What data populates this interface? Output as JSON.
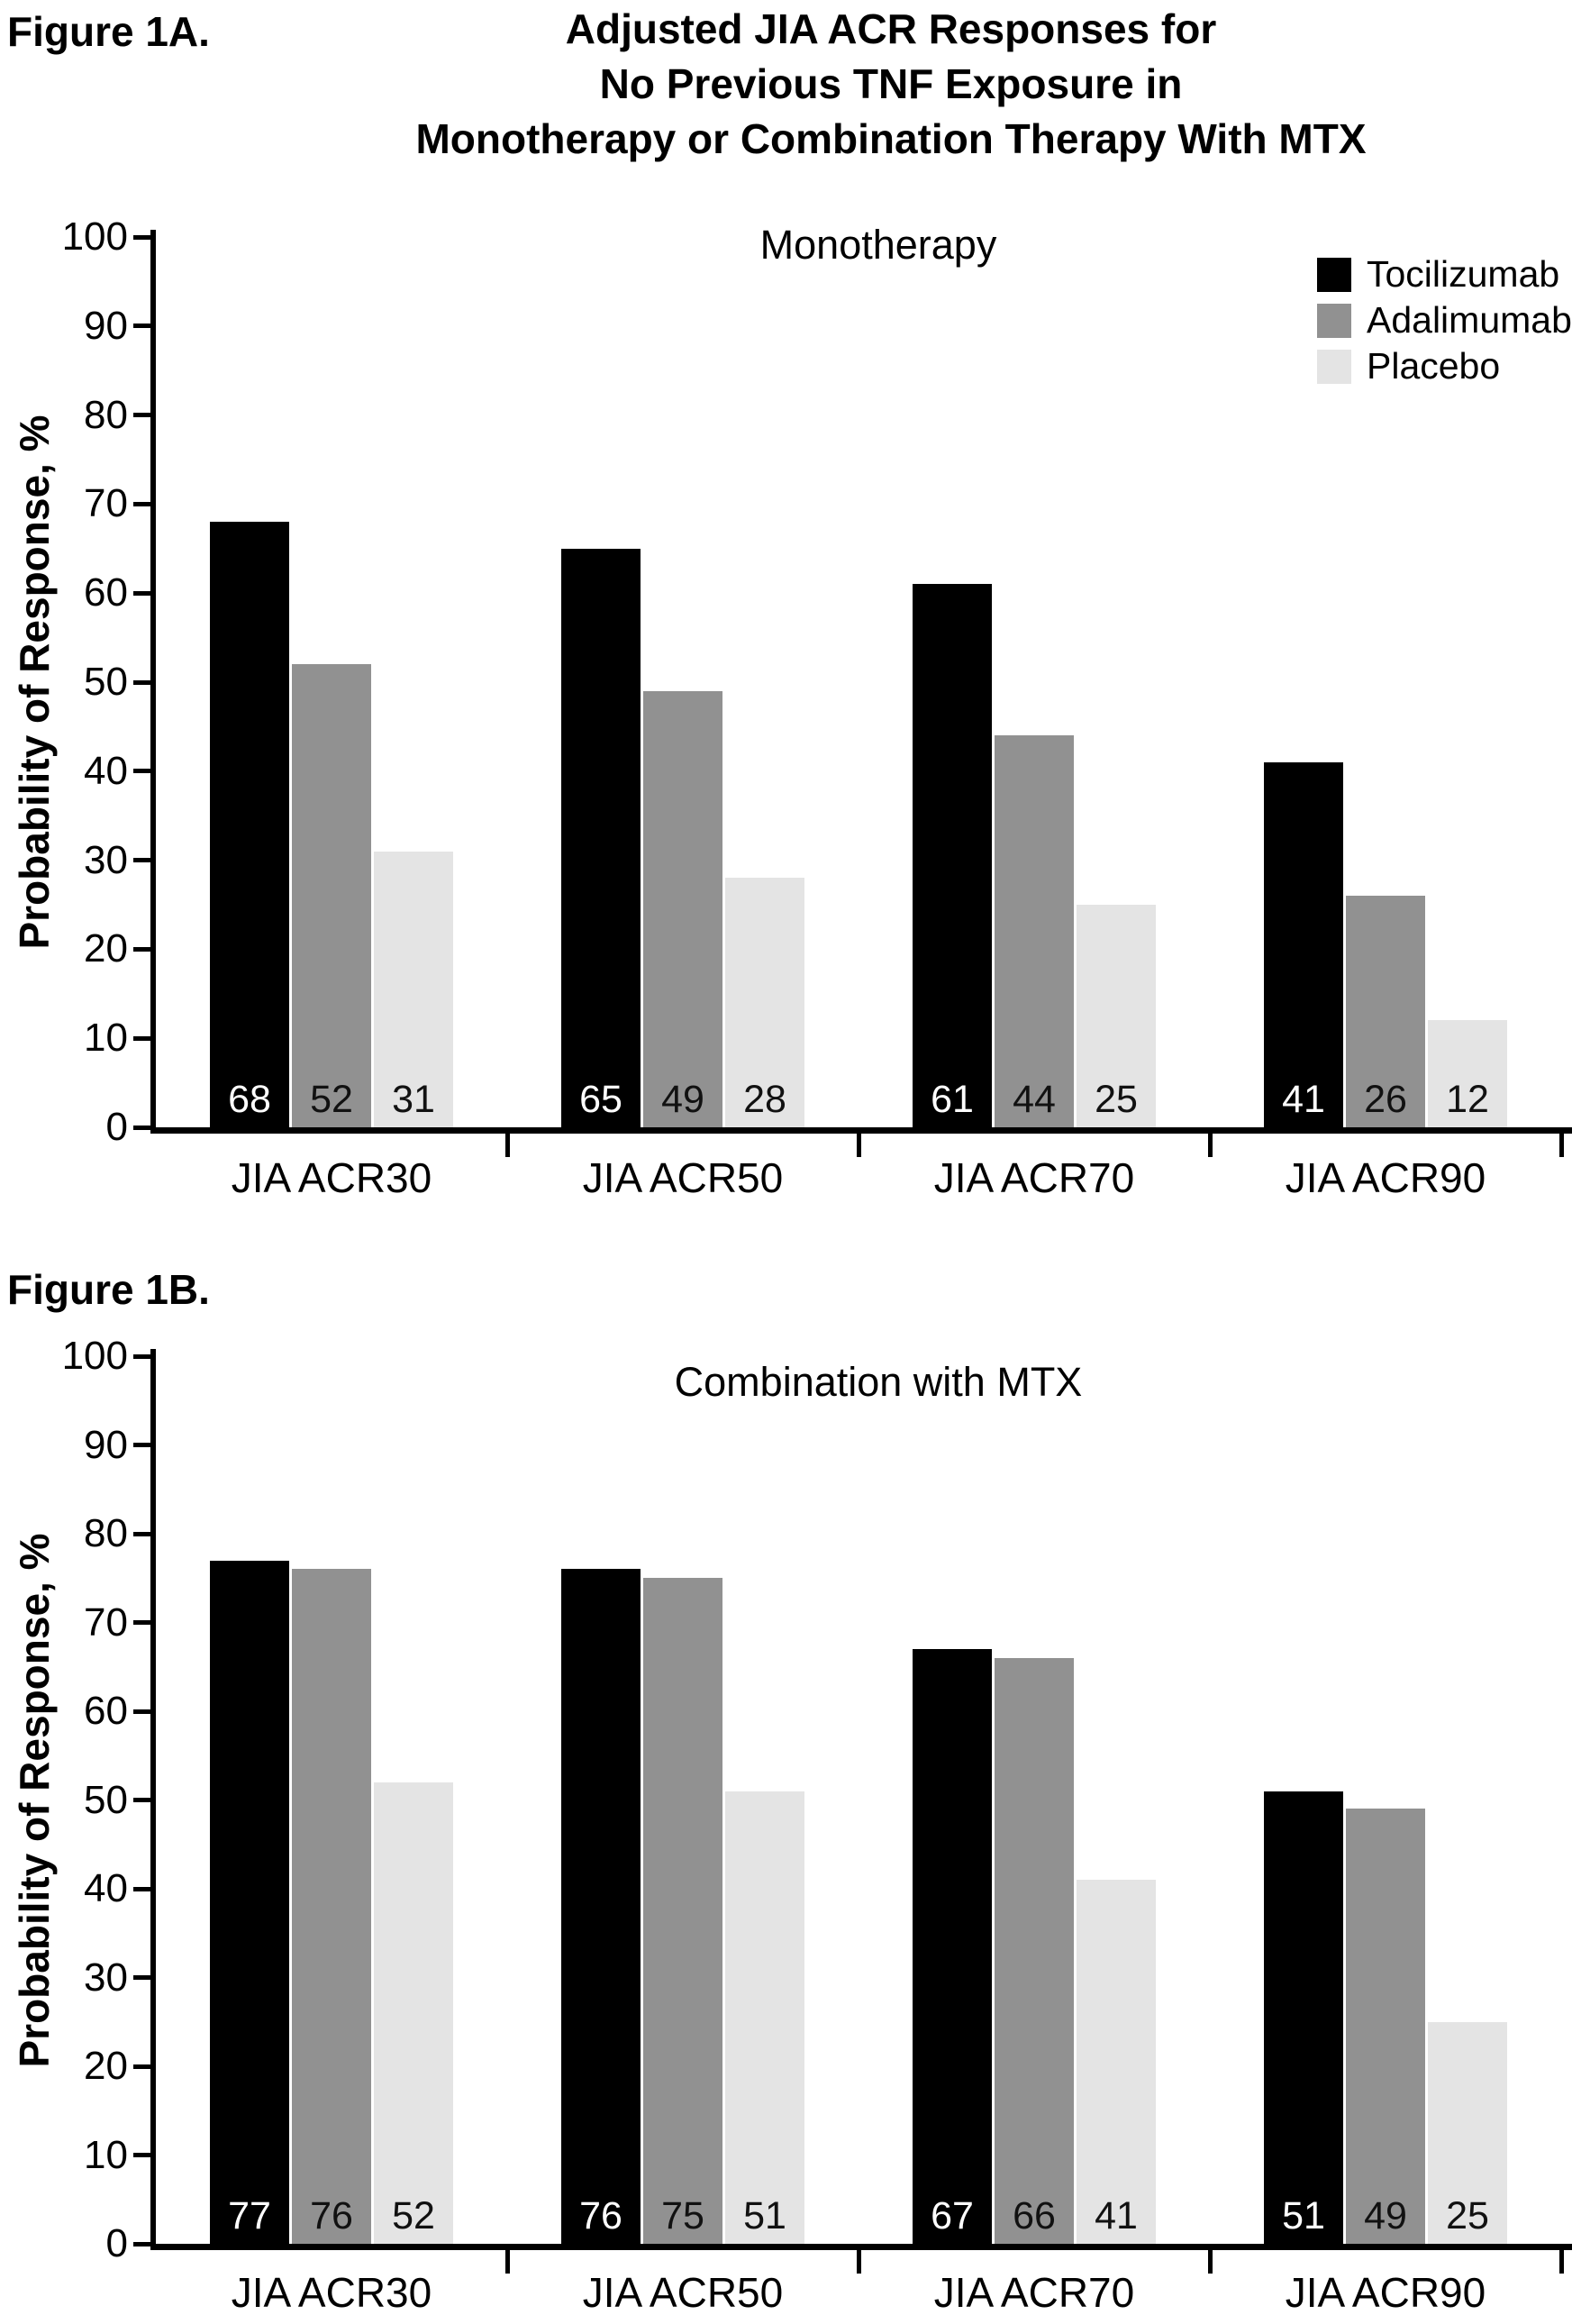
{
  "figure": {
    "title_lines": [
      "Adjusted JIA ACR Responses for",
      "No Previous TNF Exposure in",
      "Monotherapy or Combination Therapy With MTX"
    ]
  },
  "legend": {
    "position": "top-right",
    "entries": [
      {
        "label": "Tocilizumab",
        "color": "#000000"
      },
      {
        "label": "Adalimumab",
        "color": "#919191"
      },
      {
        "label": "Placebo",
        "color": "#e4e4e4"
      }
    ]
  },
  "chart_data": [
    {
      "type": "bar",
      "figure_label": "Figure 1A.",
      "title": "Monotherapy",
      "categories": [
        "JIA ACR30",
        "JIA ACR50",
        "JIA ACR70",
        "JIA ACR90"
      ],
      "series": [
        {
          "name": "Tocilizumab",
          "color": "#000000",
          "value_label_color": "#ffffff",
          "values": [
            68,
            65,
            61,
            41
          ]
        },
        {
          "name": "Adalimumab",
          "color": "#919191",
          "value_label_color": "#111111",
          "values": [
            52,
            49,
            44,
            26
          ]
        },
        {
          "name": "Placebo",
          "color": "#e4e4e4",
          "value_label_color": "#111111",
          "values": [
            31,
            28,
            25,
            12
          ]
        }
      ],
      "xlabel": "",
      "ylabel": "Probability of Response, %",
      "ylim": [
        0,
        100
      ],
      "yticks": [
        0,
        10,
        20,
        30,
        40,
        50,
        60,
        70,
        80,
        90,
        100
      ],
      "grid": false,
      "value_labels_shown": true
    },
    {
      "type": "bar",
      "figure_label": "Figure 1B.",
      "title": "Combination with MTX",
      "categories": [
        "JIA ACR30",
        "JIA ACR50",
        "JIA ACR70",
        "JIA ACR90"
      ],
      "series": [
        {
          "name": "Tocilizumab",
          "color": "#000000",
          "value_label_color": "#ffffff",
          "values": [
            77,
            76,
            67,
            51
          ]
        },
        {
          "name": "Adalimumab",
          "color": "#919191",
          "value_label_color": "#111111",
          "values": [
            76,
            75,
            66,
            49
          ]
        },
        {
          "name": "Placebo",
          "color": "#e4e4e4",
          "value_label_color": "#111111",
          "values": [
            52,
            51,
            41,
            25
          ]
        }
      ],
      "xlabel": "",
      "ylabel": "Probability of Response, %",
      "ylim": [
        0,
        100
      ],
      "yticks": [
        0,
        10,
        20,
        30,
        40,
        50,
        60,
        70,
        80,
        90,
        100
      ],
      "grid": false,
      "value_labels_shown": true
    }
  ]
}
